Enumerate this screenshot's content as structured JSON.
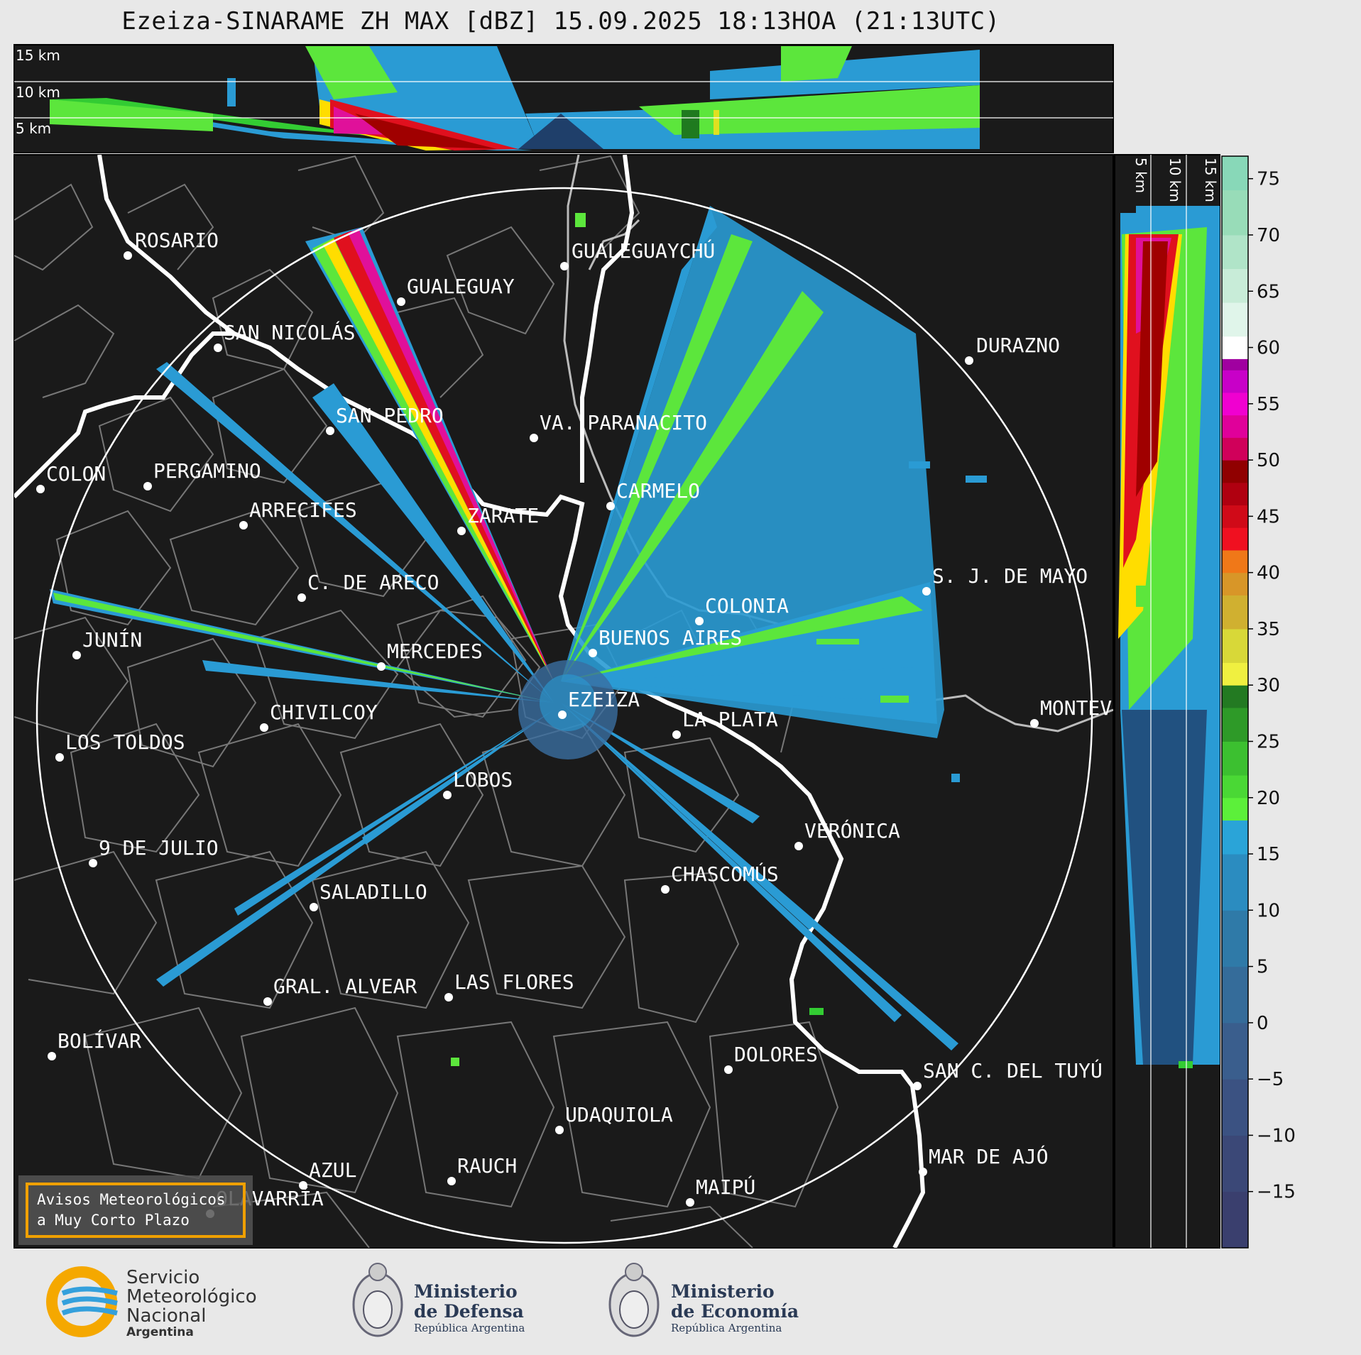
{
  "title": "Ezeiza-SINARAME ZH MAX [dBZ] 15.09.2025 18:13HOA (21:13UTC)",
  "top_panel": {
    "altitudes": [
      "15 km",
      "10 km",
      "5 km"
    ]
  },
  "side_panel": {
    "altitudes": [
      "5 km",
      "10 km",
      "15 km"
    ]
  },
  "colorbar": {
    "ticks": [
      "75",
      "70",
      "65",
      "60",
      "55",
      "50",
      "45",
      "40",
      "35",
      "30",
      "25",
      "20",
      "15",
      "10",
      "5",
      "0",
      "−5",
      "−10",
      "−15"
    ],
    "range": [
      -20,
      77
    ]
  },
  "cities": [
    {
      "name": "ROSARIO"
    },
    {
      "name": "GUALEGUAYCHÚ"
    },
    {
      "name": "GUALEGUAY"
    },
    {
      "name": "SAN NICOLÁS"
    },
    {
      "name": "DURAZNO"
    },
    {
      "name": "SAN PEDRO"
    },
    {
      "name": "VA. PARANACITO"
    },
    {
      "name": "COLON"
    },
    {
      "name": "PERGAMINO"
    },
    {
      "name": "CARMELO"
    },
    {
      "name": "ARRECIFES"
    },
    {
      "name": "ZÁRATE"
    },
    {
      "name": "S. J. DE MAYO"
    },
    {
      "name": "C. DE ARECO"
    },
    {
      "name": "COLONIA"
    },
    {
      "name": "JUNÍN"
    },
    {
      "name": "BUENOS AIRES"
    },
    {
      "name": "MERCEDES"
    },
    {
      "name": "EZEIZA"
    },
    {
      "name": "MONTEVIDEO"
    },
    {
      "name": "CHIVILCOY"
    },
    {
      "name": "LA PLATA"
    },
    {
      "name": "LOS TOLDOS"
    },
    {
      "name": "LOBOS"
    },
    {
      "name": "VERÓNICA"
    },
    {
      "name": "9 DE JULIO"
    },
    {
      "name": "CHASCOMÚS"
    },
    {
      "name": "SALADILLO"
    },
    {
      "name": "GRAL. ALVEAR"
    },
    {
      "name": "LAS FLORES"
    },
    {
      "name": "BOLÍVAR"
    },
    {
      "name": "DOLORES"
    },
    {
      "name": "SAN C. DEL TUYÚ"
    },
    {
      "name": "UDAQUIOLA"
    },
    {
      "name": "MAR DE AJÓ"
    },
    {
      "name": "AZUL"
    },
    {
      "name": "OLAVARRÍA"
    },
    {
      "name": "RAUCH"
    },
    {
      "name": "MAIPÚ"
    }
  ],
  "notice_box": {
    "line1": "Avisos Meteorológicos",
    "line2": "a Muy Corto Plazo"
  },
  "logos": {
    "smn": {
      "line1": "Servicio",
      "line2": "Meteorológico",
      "line3": "Nacional",
      "line4": "Argentina"
    },
    "defensa": {
      "line1": "Ministerio",
      "line2": "de Defensa",
      "line3": "República Argentina"
    },
    "economia": {
      "line1": "Ministerio",
      "line2": "de Economía",
      "line3": "República Argentina"
    }
  },
  "colors": {
    "map_bg": "#1a1a1a",
    "accent": "#f0a000"
  }
}
